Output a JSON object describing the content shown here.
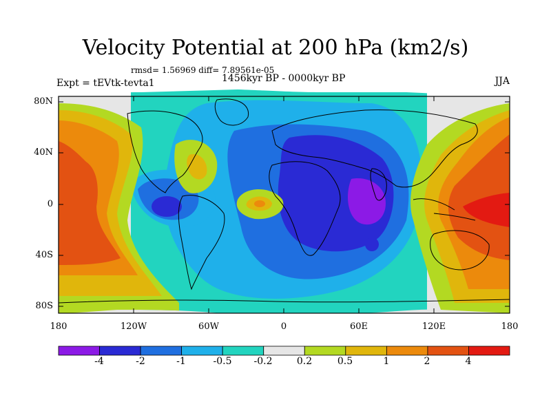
{
  "title": "Velocity Potential at 200 hPa (km2/s)",
  "stats": "rmsd= 1.56969 diff= 7.89561e-05",
  "experiment": "Expt = tEVtk-tevta1",
  "period": "1456kyr BP - 0000kyr BP",
  "season": "JJA",
  "lat_labels": [
    "80N",
    "40N",
    "0",
    "40S",
    "80S"
  ],
  "lon_labels": [
    "180",
    "120W",
    "60W",
    "0",
    "60E",
    "120E",
    "180"
  ],
  "colorbar": {
    "colors": [
      "#8c1ae6",
      "#2a2ad4",
      "#1f6fe0",
      "#1fb0ea",
      "#22d4bf",
      "#e6e6e6",
      "#b3d922",
      "#e0b60c",
      "#ec8a0c",
      "#e35212",
      "#e31a12"
    ],
    "labels": [
      "-4",
      "-2",
      "-1",
      "-0.5",
      "-0.2",
      "0.2",
      "0.5",
      "1",
      "2",
      "4"
    ]
  },
  "chart_data": {
    "type": "heatmap",
    "title": "Velocity Potential at 200 hPa (km2/s)",
    "levels": [
      -4,
      -2,
      -1,
      -0.5,
      -0.2,
      0.2,
      0.5,
      1,
      2,
      4
    ],
    "x_ticks": [
      "180",
      "120W",
      "60W",
      "0",
      "60E",
      "120E",
      "180"
    ],
    "y_ticks": [
      "80N",
      "40N",
      "0",
      "40S",
      "80S"
    ],
    "features": [
      {
        "name": "minimum",
        "region": "East Africa / western Indian Ocean",
        "value_range": "< -4"
      },
      {
        "name": "minimum",
        "region": "eastern tropical Pacific",
        "value_range": "-4 to -2"
      },
      {
        "name": "maximum",
        "region": "western Pacific / Maritime Continent",
        "value_range": "> 4"
      },
      {
        "name": "maximum",
        "region": "central Pacific",
        "value_range": "2 to 4"
      },
      {
        "name": "maximum",
        "region": "tropical Atlantic",
        "value_range": "1 to 2"
      },
      {
        "name": "maximum",
        "region": "western North Atlantic",
        "value_range": "0.5 to 1"
      }
    ]
  }
}
